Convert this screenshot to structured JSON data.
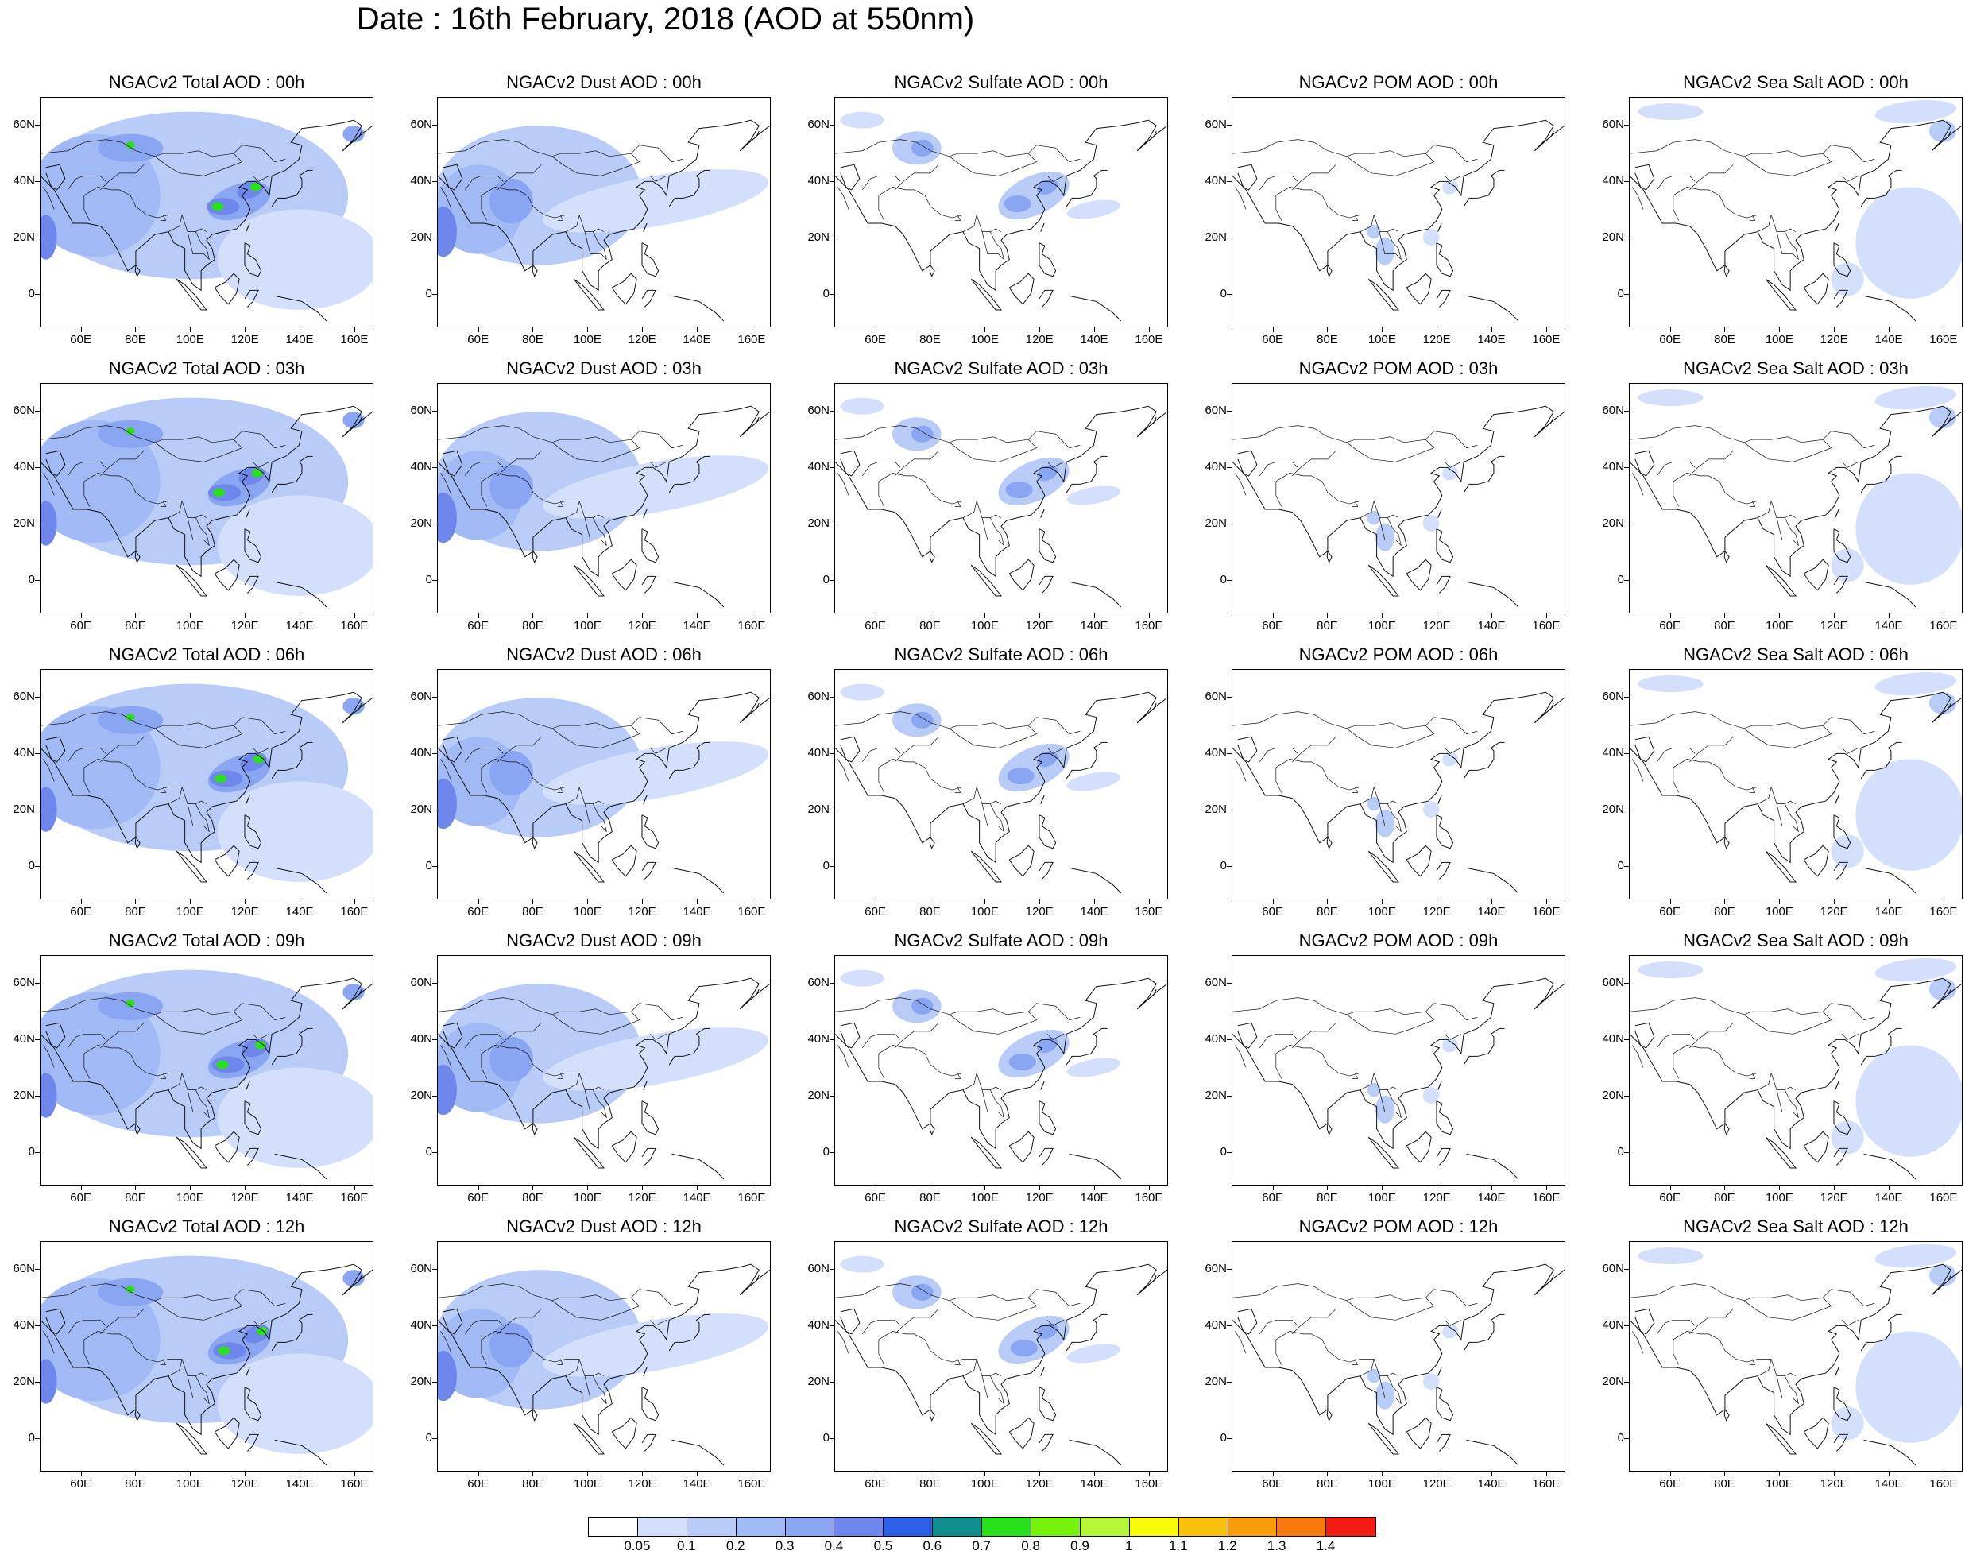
{
  "title": "Date : 16th February, 2018 (AOD at 550nm)",
  "x_ticks": [
    "60E",
    "80E",
    "100E",
    "120E",
    "140E",
    "160E"
  ],
  "y_ticks": [
    "60N",
    "40N",
    "20N",
    "0"
  ],
  "panels": [
    {
      "title": "NGACv2 Total AOD : 00h",
      "species": "total"
    },
    {
      "title": "NGACv2 Dust AOD : 00h",
      "species": "dust"
    },
    {
      "title": "NGACv2 Sulfate AOD : 00h",
      "species": "sulfate"
    },
    {
      "title": "NGACv2 POM AOD : 00h",
      "species": "pom"
    },
    {
      "title": "NGACv2 Sea Salt AOD : 00h",
      "species": "seasalt"
    },
    {
      "title": "NGACv2 Total AOD : 03h",
      "species": "total"
    },
    {
      "title": "NGACv2 Dust AOD : 03h",
      "species": "dust"
    },
    {
      "title": "NGACv2 Sulfate AOD : 03h",
      "species": "sulfate"
    },
    {
      "title": "NGACv2 POM AOD : 03h",
      "species": "pom"
    },
    {
      "title": "NGACv2 Sea Salt AOD : 03h",
      "species": "seasalt"
    },
    {
      "title": "NGACv2 Total AOD : 06h",
      "species": "total"
    },
    {
      "title": "NGACv2 Dust AOD : 06h",
      "species": "dust"
    },
    {
      "title": "NGACv2 Sulfate AOD : 06h",
      "species": "sulfate"
    },
    {
      "title": "NGACv2 POM AOD : 06h",
      "species": "pom"
    },
    {
      "title": "NGACv2 Sea Salt AOD : 06h",
      "species": "seasalt"
    },
    {
      "title": "NGACv2 Total AOD : 09h",
      "species": "total"
    },
    {
      "title": "NGACv2 Dust AOD : 09h",
      "species": "dust"
    },
    {
      "title": "NGACv2 Sulfate AOD : 09h",
      "species": "sulfate"
    },
    {
      "title": "NGACv2 POM AOD : 09h",
      "species": "pom"
    },
    {
      "title": "NGACv2 Sea Salt  AOD : 09h",
      "species": "seasalt"
    },
    {
      "title": "NGACv2 Total AOD  : 12h",
      "species": "total"
    },
    {
      "title": "NGACv2 Dust AOD : 12h",
      "species": "dust"
    },
    {
      "title": "NGACv2 Sulfate AOD : 12h",
      "species": "sulfate"
    },
    {
      "title": "NGACv2 POM  AOD : 12h",
      "species": "pom"
    },
    {
      "title": "NGACv2 Sea Salt  AOD : 12h",
      "species": "seasalt"
    }
  ],
  "colorbar": {
    "labels": [
      "0.05",
      "0.1",
      "0.2",
      "0.3",
      "0.4",
      "0.5",
      "0.6",
      "0.7",
      "0.8",
      "0.9",
      "1",
      "1.1",
      "1.2",
      "1.3",
      "1.4"
    ],
    "colors": [
      "#ffffff",
      "#d4e0fb",
      "#b9cbf7",
      "#a1b9f4",
      "#8aa5f1",
      "#6f86ec",
      "#2a5fe6",
      "#0f8e8e",
      "#29e11a",
      "#77f20a",
      "#b7f537",
      "#fafb0a",
      "#f9c10c",
      "#f99c0a",
      "#f77a0c",
      "#f41b14"
    ]
  }
}
